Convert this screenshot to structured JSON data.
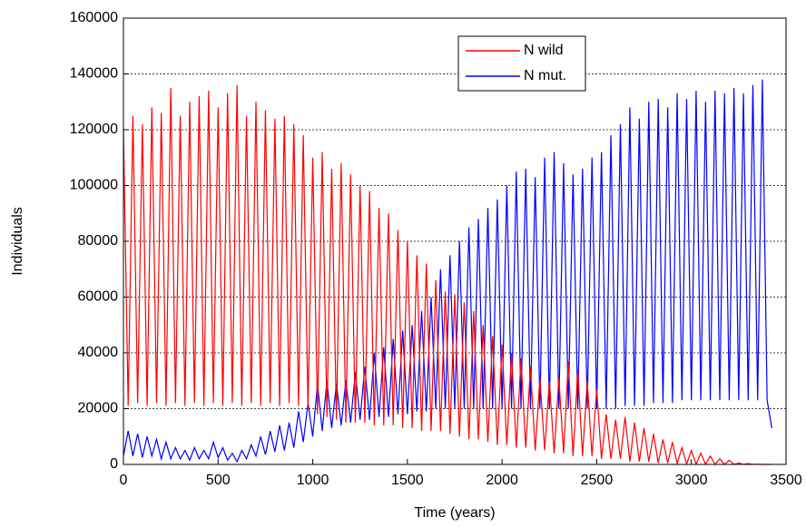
{
  "chart_data": {
    "type": "line",
    "xlabel": "Time (years)",
    "ylabel": "Individuals",
    "xlim": [
      0,
      3500
    ],
    "ylim": [
      0,
      160000
    ],
    "xticks": [
      0,
      500,
      1000,
      1500,
      2000,
      2500,
      3000,
      3500
    ],
    "yticks": [
      0,
      20000,
      40000,
      60000,
      80000,
      100000,
      120000,
      140000,
      160000
    ],
    "grid": true,
    "legend": "top-center",
    "x": [
      0,
      25,
      50,
      75,
      100,
      125,
      150,
      175,
      200,
      225,
      250,
      275,
      300,
      325,
      350,
      375,
      400,
      425,
      450,
      475,
      500,
      525,
      550,
      575,
      600,
      625,
      650,
      675,
      700,
      725,
      750,
      775,
      800,
      825,
      850,
      875,
      900,
      925,
      950,
      975,
      1000,
      1025,
      1050,
      1075,
      1100,
      1125,
      1150,
      1175,
      1200,
      1225,
      1250,
      1275,
      1300,
      1325,
      1350,
      1375,
      1400,
      1425,
      1450,
      1475,
      1500,
      1525,
      1550,
      1575,
      1600,
      1625,
      1650,
      1675,
      1700,
      1725,
      1750,
      1775,
      1800,
      1825,
      1850,
      1875,
      1900,
      1925,
      1950,
      1975,
      2000,
      2025,
      2050,
      2075,
      2100,
      2125,
      2150,
      2175,
      2200,
      2225,
      2250,
      2275,
      2300,
      2325,
      2350,
      2375,
      2400,
      2425,
      2450,
      2475,
      2500,
      2525,
      2550,
      2575,
      2600,
      2625,
      2650,
      2675,
      2700,
      2725,
      2750,
      2775,
      2800,
      2825,
      2850,
      2875,
      2900,
      2925,
      2950,
      2975,
      3000,
      3025,
      3050,
      3075,
      3100,
      3125,
      3150,
      3175,
      3200,
      3225,
      3250,
      3275,
      3300,
      3325,
      3350,
      3375,
      3400,
      3425
    ],
    "series": [
      {
        "name": "N wild",
        "color": "#ff0000",
        "values": [
          120000,
          21000,
          125000,
          22000,
          122000,
          21000,
          128000,
          22000,
          126000,
          21000,
          135000,
          22000,
          125000,
          21000,
          130000,
          22000,
          132000,
          21000,
          134000,
          22000,
          128000,
          21000,
          133000,
          22000,
          136000,
          21000,
          125000,
          22000,
          130000,
          21000,
          127000,
          22000,
          124000,
          21000,
          125000,
          22000,
          122000,
          21000,
          118000,
          20000,
          110000,
          18000,
          112000,
          17000,
          106000,
          16000,
          108000,
          15000,
          104000,
          15000,
          100000,
          15000,
          98000,
          14000,
          92000,
          14000,
          90000,
          14000,
          84000,
          13000,
          80000,
          13000,
          75000,
          12000,
          72000,
          12000,
          66000,
          12000,
          62000,
          11000,
          61000,
          10000,
          58000,
          9000,
          55000,
          9000,
          50000,
          8000,
          46000,
          7000,
          43000,
          7000,
          40000,
          6000,
          38000,
          6000,
          35000,
          5000,
          31000,
          5000,
          30000,
          4000,
          31000,
          4000,
          37000,
          3000,
          34000,
          3000,
          30000,
          3000,
          27000,
          2000,
          18000,
          2000,
          16000,
          2000,
          17000,
          1000,
          15000,
          1000,
          13000,
          1000,
          11000,
          500,
          9000,
          500,
          8000,
          300,
          6000,
          200,
          5000,
          100,
          4000,
          0,
          3000,
          0,
          2000,
          0,
          1500,
          0,
          500,
          0,
          300,
          0,
          100,
          0,
          0,
          0
        ]
      },
      {
        "name": "N mut.",
        "color": "#0000ff",
        "values": [
          3000,
          12000,
          3000,
          11000,
          2500,
          10000,
          3000,
          9000,
          2000,
          8000,
          2000,
          6000,
          2000,
          5000,
          1500,
          6000,
          2000,
          5000,
          2000,
          8000,
          2500,
          6000,
          1500,
          4000,
          1000,
          5000,
          2000,
          7000,
          3000,
          10000,
          3500,
          12000,
          4500,
          14000,
          5000,
          15000,
          6000,
          19000,
          8000,
          22000,
          10000,
          29000,
          12000,
          30000,
          13000,
          29000,
          14000,
          30000,
          15000,
          33000,
          16000,
          35000,
          16000,
          40000,
          17000,
          42000,
          17000,
          45000,
          18000,
          48000,
          18000,
          50000,
          19000,
          55000,
          19000,
          60000,
          20000,
          70000,
          20000,
          75000,
          20000,
          80000,
          20000,
          85000,
          20000,
          88000,
          20000,
          92000,
          20000,
          95000,
          20000,
          100000,
          20000,
          105000,
          20000,
          106000,
          20000,
          103000,
          20000,
          110000,
          20000,
          112000,
          20000,
          108000,
          20000,
          104000,
          20000,
          106000,
          20000,
          110000,
          20000,
          112000,
          20000,
          118000,
          20000,
          122000,
          21000,
          128000,
          21000,
          124000,
          21000,
          130000,
          22000,
          131000,
          22000,
          128000,
          22000,
          133000,
          23000,
          131000,
          23000,
          134000,
          23000,
          130000,
          23000,
          134000,
          23000,
          133000,
          23000,
          135000,
          23000,
          133000,
          23000,
          136000,
          23000,
          138000,
          23000,
          13000
        ]
      }
    ]
  }
}
